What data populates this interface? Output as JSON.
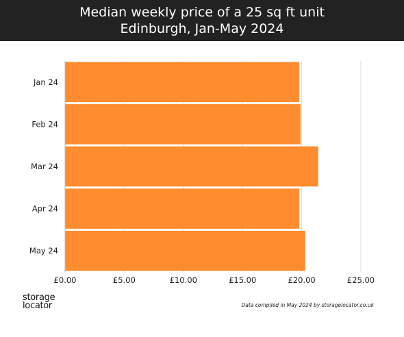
{
  "header": {
    "title_line1": "Median weekly price of a 25 sq ft unit",
    "title_line2": "Edinburgh, Jan-May 2024"
  },
  "chart_data": {
    "type": "bar",
    "orientation": "horizontal",
    "categories": [
      "Jan 24",
      "Feb 24",
      "Mar 24",
      "Apr 24",
      "May 24"
    ],
    "values": [
      19.8,
      19.9,
      21.4,
      19.8,
      20.3
    ],
    "x_ticks": [
      "£0.00",
      "£5.00",
      "£10.00",
      "£15.00",
      "£20.00",
      "£25.00"
    ],
    "xlim": [
      0,
      25
    ],
    "grid": true,
    "bar_color": "#FF8C2E",
    "title": "Median weekly price of a 25 sq ft unit",
    "subtitle": "Edinburgh, Jan-May 2024"
  },
  "branding": {
    "logo_line1": "storage",
    "logo_line2": "locator"
  },
  "footnote": "Data compiled in May 2024 by storagelocator.co.uk"
}
